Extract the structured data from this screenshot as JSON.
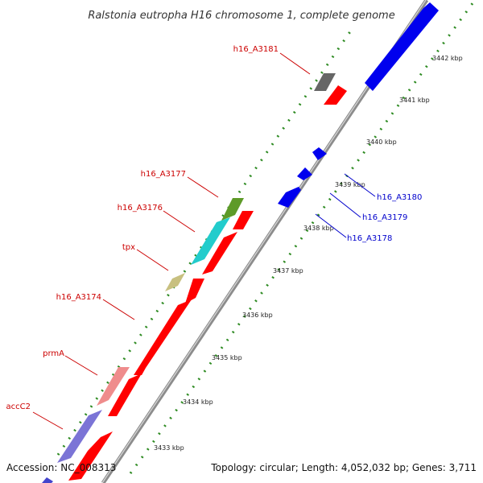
{
  "title": "Ralstonia eutropha H16 chromosome 1, complete genome",
  "footer": {
    "accession": "Accession: NC_008313",
    "topology": "Topology: circular; Length: 4,052,032 bp; Genes: 3,711"
  },
  "colors": {
    "backbone": "#8c8c8c",
    "tick_marks": "#2e8b22",
    "label_forward": "#cc0000",
    "label_reverse": "#0000cc",
    "forward_cds": "#ff0000",
    "reverse_cds": "#0000ff"
  },
  "scale": [
    {
      "kbp": 3433,
      "label": "3433 kbp"
    },
    {
      "kbp": 3434,
      "label": "3434 kbp"
    },
    {
      "kbp": 3435,
      "label": "3435 kbp"
    },
    {
      "kbp": 3436,
      "label": "3436 kbp"
    },
    {
      "kbp": 3437,
      "label": "3437 kbp"
    },
    {
      "kbp": 3438,
      "label": "3438 kbp"
    },
    {
      "kbp": 3439,
      "label": "3439 kbp"
    },
    {
      "kbp": 3440,
      "label": "3440 kbp"
    },
    {
      "kbp": 3441,
      "label": "3441 kbp"
    },
    {
      "kbp": 3442,
      "label": "3442 kbp"
    }
  ],
  "genes": [
    {
      "label": "accC2",
      "side": "forward"
    },
    {
      "label": "prmA",
      "side": "forward"
    },
    {
      "label": "h16_A3174",
      "side": "forward"
    },
    {
      "label": "tpx",
      "side": "forward"
    },
    {
      "label": "h16_A3176",
      "side": "forward"
    },
    {
      "label": "h16_A3177",
      "side": "forward"
    },
    {
      "label": "h16_A3181",
      "side": "forward"
    },
    {
      "label": "h16_A3178",
      "side": "reverse"
    },
    {
      "label": "h16_A3179",
      "side": "reverse"
    },
    {
      "label": "h16_A3180",
      "side": "reverse"
    }
  ]
}
